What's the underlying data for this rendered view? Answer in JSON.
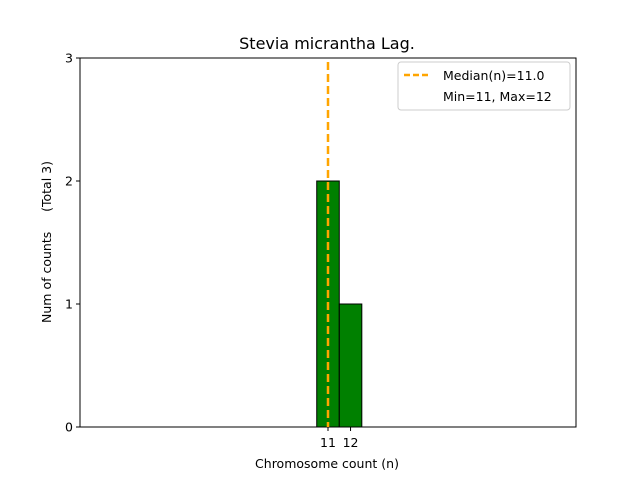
{
  "chart_data": {
    "type": "bar",
    "title": "Stevia micrantha Lag.",
    "xlabel": "Chromosome count (n)",
    "ylabel": "Num of counts     (Total 3)",
    "categories": [
      11,
      12
    ],
    "values": [
      2,
      1
    ],
    "xlim": [
      0,
      22
    ],
    "ylim": [
      0,
      3
    ],
    "xticks": [
      11,
      12
    ],
    "yticks": [
      0,
      1,
      2,
      3
    ],
    "bar_color": "#008000",
    "bar_edge_color": "#000000",
    "median": 11.0,
    "median_color": "#ffa500",
    "legend": {
      "placement": "upper right",
      "median_label": "Median(n)=11.0",
      "minmax_label": "Min=11, Max=12"
    },
    "grid": false
  }
}
